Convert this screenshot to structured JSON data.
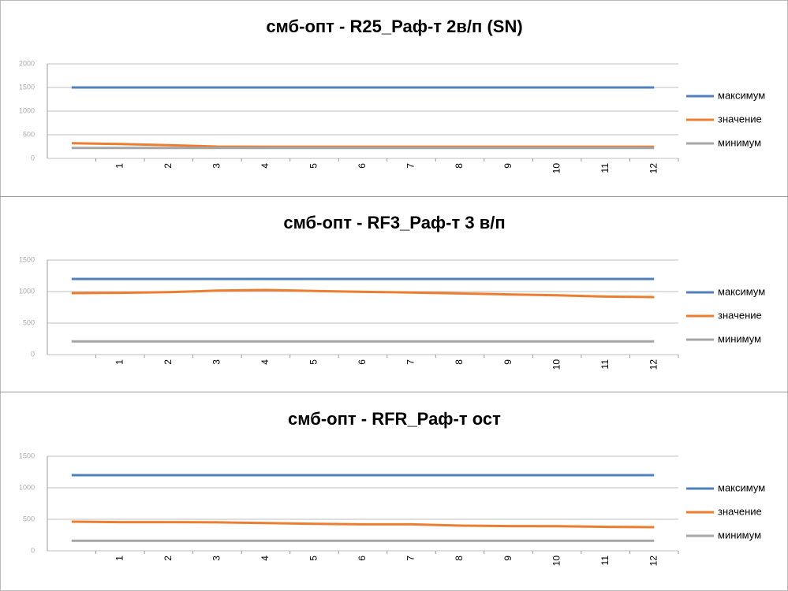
{
  "chart_data": [
    {
      "type": "line",
      "title": "смб-опт - R25_Раф-т 2в/п (SN)",
      "categories": [
        null,
        "1",
        "2",
        "3",
        "4",
        "5",
        "6",
        "7",
        "8",
        "9",
        "10",
        "11",
        "12"
      ],
      "ylim": [
        0,
        2000
      ],
      "yticks": [
        0,
        500,
        1000,
        1500,
        2000
      ],
      "grid": true,
      "series": [
        {
          "name": "максимум",
          "color": "#4f81bd",
          "values": [
            1500,
            1500,
            1500,
            1500,
            1500,
            1500,
            1500,
            1500,
            1500,
            1500,
            1500,
            1500,
            1500
          ]
        },
        {
          "name": "значение",
          "color": "#ed7d31",
          "values": [
            320,
            305,
            280,
            250,
            245,
            245,
            245,
            245,
            245,
            245,
            245,
            245,
            245
          ]
        },
        {
          "name": "минимум",
          "color": "#a5a5a5",
          "values": [
            220,
            220,
            220,
            220,
            220,
            220,
            220,
            220,
            220,
            220,
            220,
            220,
            220
          ]
        }
      ]
    },
    {
      "type": "line",
      "title": "смб-опт - RF3_Раф-т 3 в/п",
      "categories": [
        null,
        "1",
        "2",
        "3",
        "4",
        "5",
        "6",
        "7",
        "8",
        "9",
        "10",
        "11",
        "12"
      ],
      "ylim": [
        0,
        1500
      ],
      "yticks": [
        0,
        500,
        1000,
        1500
      ],
      "grid": true,
      "series": [
        {
          "name": "максимум",
          "color": "#4f81bd",
          "values": [
            1200,
            1200,
            1200,
            1200,
            1200,
            1200,
            1200,
            1200,
            1200,
            1200,
            1200,
            1200,
            1200
          ]
        },
        {
          "name": "значение",
          "color": "#ed7d31",
          "values": [
            975,
            980,
            990,
            1015,
            1025,
            1010,
            995,
            985,
            970,
            955,
            940,
            920,
            912
          ]
        },
        {
          "name": "минимум",
          "color": "#a5a5a5",
          "values": [
            210,
            210,
            210,
            210,
            210,
            210,
            210,
            210,
            210,
            210,
            210,
            210,
            210
          ]
        }
      ]
    },
    {
      "type": "line",
      "title": "смб-опт - RFR_Раф-т ост",
      "categories": [
        null,
        "1",
        "2",
        "3",
        "4",
        "5",
        "6",
        "7",
        "8",
        "9",
        "10",
        "11",
        "12"
      ],
      "ylim": [
        0,
        1500
      ],
      "yticks": [
        0,
        500,
        1000,
        1500
      ],
      "grid": true,
      "series": [
        {
          "name": "максимум",
          "color": "#4f81bd",
          "values": [
            1200,
            1200,
            1200,
            1200,
            1200,
            1200,
            1200,
            1200,
            1200,
            1200,
            1200,
            1200,
            1200
          ]
        },
        {
          "name": "значение",
          "color": "#ed7d31",
          "values": [
            462,
            455,
            455,
            452,
            440,
            428,
            420,
            420,
            400,
            392,
            390,
            380,
            375
          ]
        },
        {
          "name": "минимум",
          "color": "#a5a5a5",
          "values": [
            160,
            160,
            160,
            160,
            160,
            160,
            160,
            160,
            160,
            160,
            160,
            160,
            160
          ]
        }
      ]
    }
  ]
}
